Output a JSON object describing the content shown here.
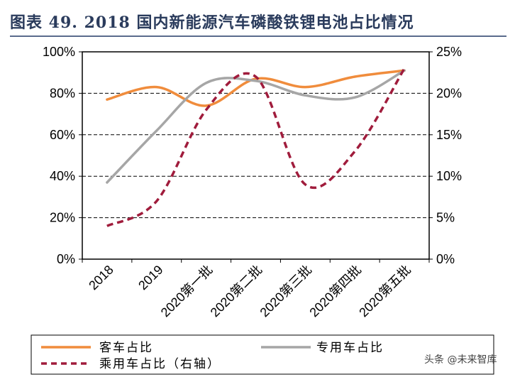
{
  "header": {
    "title": "图表 49. 2018 国内新能源汽车磷酸铁锂电池占比情况"
  },
  "chart_data": {
    "type": "line",
    "title": "图表 49. 2018 国内新能源汽车磷酸铁锂电池占比情况",
    "categories": [
      "2018",
      "2019",
      "2020第一批",
      "2020第二批",
      "2020第三批",
      "2020第四批",
      "2020第五批"
    ],
    "y_left": {
      "ticks": [
        "0%",
        "20%",
        "40%",
        "60%",
        "80%",
        "100%"
      ],
      "range": [
        0,
        100
      ]
    },
    "y_right": {
      "ticks": [
        "0%",
        "5%",
        "10%",
        "15%",
        "20%",
        "25%"
      ],
      "range": [
        0,
        25
      ]
    },
    "grid": "dashed horizontal",
    "legend_position": "bottom",
    "series": [
      {
        "name": "客车占比",
        "axis": "left",
        "style": "solid",
        "color": "#f08c3c",
        "values": [
          77,
          83,
          74,
          87,
          83,
          88,
          91
        ]
      },
      {
        "name": "专用车占比",
        "axis": "left",
        "style": "solid",
        "color": "#a6a6a6",
        "values": [
          37,
          62,
          85,
          86,
          79,
          78,
          91
        ]
      },
      {
        "name": "乘用车占比（右轴）",
        "axis": "right",
        "style": "dashed",
        "color": "#a01c3c",
        "values": [
          4,
          7,
          18,
          22,
          9,
          13,
          23
        ]
      }
    ]
  },
  "watermark": {
    "text": "头条 @未来智库"
  }
}
